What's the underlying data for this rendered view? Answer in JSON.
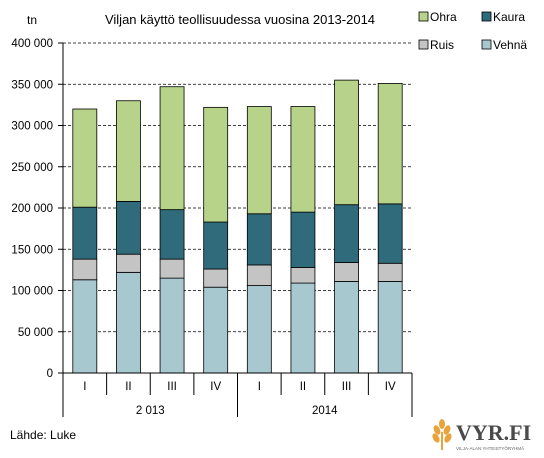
{
  "chart_data": {
    "type": "bar",
    "stacked": true,
    "title": "Viljan käyttö teollisuudessa vuosina 2013-2014",
    "ylabel": "tn",
    "ylim": [
      0,
      400000
    ],
    "yticks": [
      "400 000",
      "350 000",
      "300 000",
      "250 000",
      "200 000",
      "150 000",
      "100 000",
      "50 000",
      "0"
    ],
    "ytick_values": [
      400000,
      350000,
      300000,
      250000,
      200000,
      150000,
      100000,
      50000,
      0
    ],
    "grid": "horizontal-dashed",
    "legend_position": "top-right",
    "categories": [
      "I",
      "II",
      "III",
      "IV",
      "I",
      "II",
      "III",
      "IV"
    ],
    "groups": [
      {
        "label": "2 013",
        "span": [
          0,
          3
        ]
      },
      {
        "label": "2014",
        "span": [
          4,
          7
        ]
      }
    ],
    "series": [
      {
        "name": "Vehnä",
        "color": "#a8c8d0",
        "values": [
          113000,
          122000,
          115000,
          104000,
          106000,
          109000,
          111000,
          111000
        ]
      },
      {
        "name": "Ruis",
        "color": "#c4c4c4",
        "values": [
          25000,
          22000,
          23000,
          22000,
          25000,
          19000,
          23000,
          22000
        ]
      },
      {
        "name": "Kaura",
        "color": "#2f6b7a",
        "values": [
          63000,
          64000,
          60000,
          57000,
          62000,
          67000,
          70000,
          72000
        ]
      },
      {
        "name": "Ohra",
        "color": "#b7d38a",
        "values": [
          119000,
          122000,
          149000,
          139000,
          130000,
          128000,
          151000,
          146000
        ]
      }
    ],
    "legend_order": [
      "Ohra",
      "Kaura",
      "Ruis",
      "Vehnä"
    ]
  },
  "footer": {
    "source": "Lähde: Luke",
    "logo_text": "VYR.FI",
    "logo_subtext": "VILJA-ALAN YHTEISTYÖRYHMÄ"
  }
}
